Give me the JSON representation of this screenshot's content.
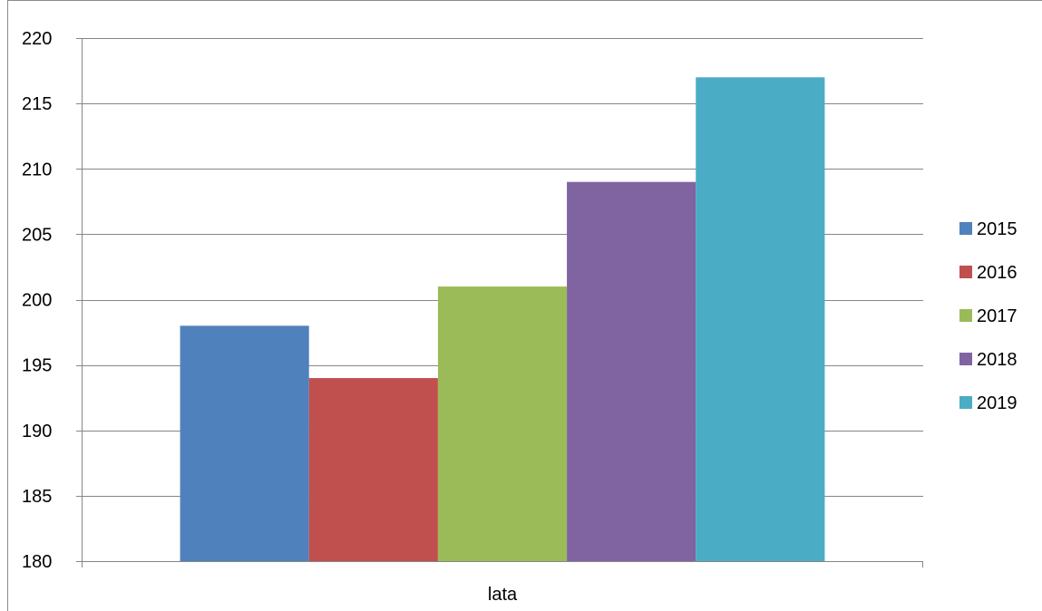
{
  "chart_data": {
    "type": "bar",
    "categories": [
      "lata"
    ],
    "series": [
      {
        "name": "2015",
        "values": [
          198
        ],
        "color": "#4f81bd"
      },
      {
        "name": "2016",
        "values": [
          194
        ],
        "color": "#c0504d"
      },
      {
        "name": "2017",
        "values": [
          201
        ],
        "color": "#9bbb59"
      },
      {
        "name": "2018",
        "values": [
          209
        ],
        "color": "#8064a2"
      },
      {
        "name": "2019",
        "values": [
          217
        ],
        "color": "#4bacc6"
      }
    ],
    "title": "",
    "xlabel": "",
    "ylabel": "",
    "ylim": [
      180,
      220
    ],
    "yticks": [
      180,
      185,
      190,
      195,
      200,
      205,
      210,
      215,
      220
    ],
    "grid": true,
    "legend_position": "right"
  }
}
